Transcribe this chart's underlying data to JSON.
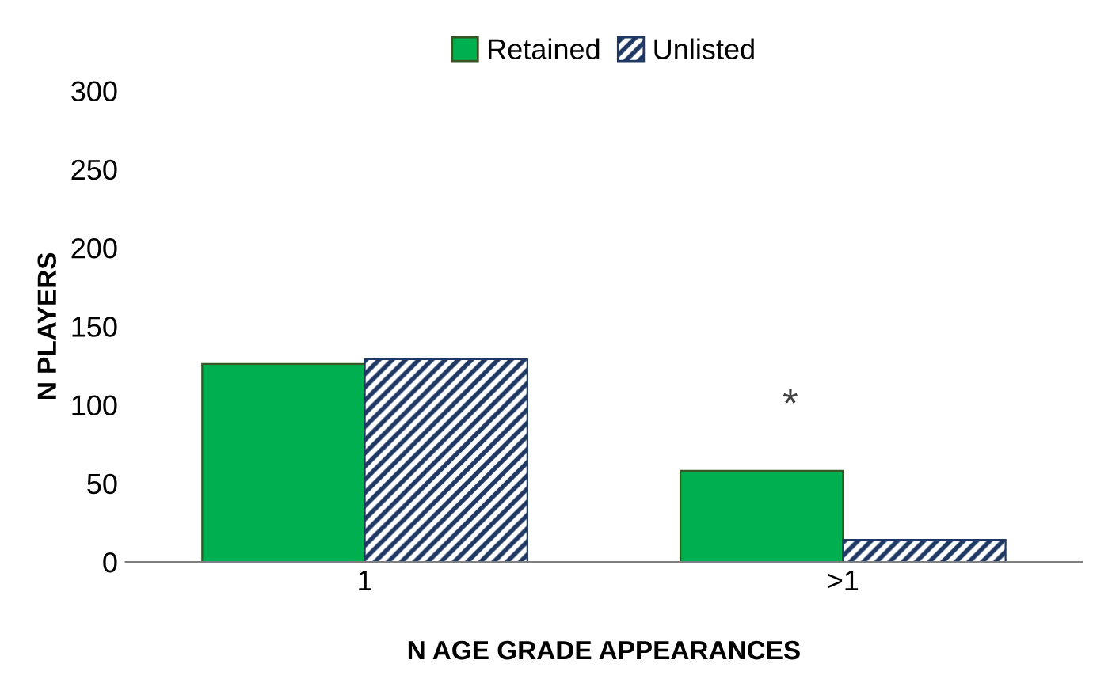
{
  "chart_data": {
    "type": "bar",
    "xlabel": "N AGE GRADE APPEARANCES",
    "ylabel": "N PLAYERS",
    "categories": [
      "1",
      ">1"
    ],
    "series": [
      {
        "name": "Retained",
        "color": "#00b050",
        "values": [
          126,
          58
        ]
      },
      {
        "name": "Unlisted",
        "color": "#1f3864",
        "values": [
          129,
          14
        ]
      }
    ],
    "ylim": [
      0,
      300
    ],
    "yticks": [
      0,
      50,
      100,
      150,
      200,
      250,
      300
    ],
    "grid": false,
    "legend": "top",
    "annotations": [
      "*"
    ]
  }
}
